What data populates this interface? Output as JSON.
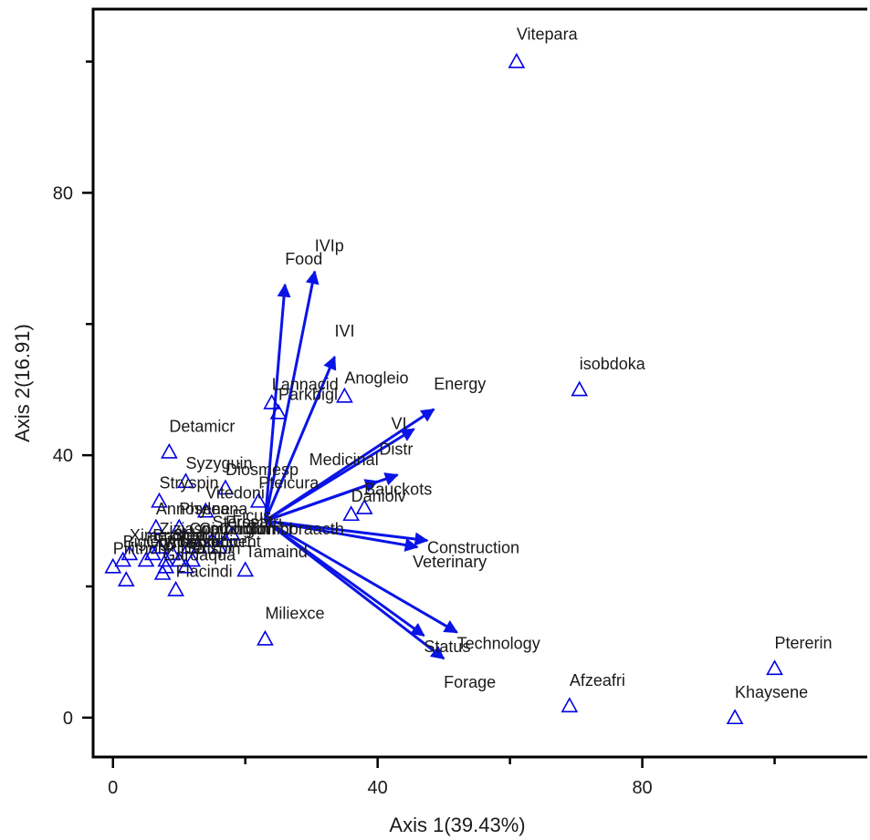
{
  "chart_data": {
    "type": "scatter",
    "title": "",
    "xlabel": "Axis 1(39.43%)",
    "ylabel": "Axis 2(16.91)",
    "xlim": [
      -3,
      114
    ],
    "ylim": [
      -6,
      108
    ],
    "x_ticks": [
      0,
      40,
      80
    ],
    "y_ticks": [
      0,
      40,
      80
    ],
    "x_tick_labels": [
      "0",
      "40",
      "80"
    ],
    "y_tick_labels": [
      "0",
      "40",
      "80"
    ],
    "grid": false,
    "marker": "triangle-open",
    "colors": {
      "marker": "#0000e6",
      "arrow": "#0a14e6",
      "axis": "#000000",
      "text": "#1a1a1a"
    },
    "arrow_origin": [
      23,
      30
    ],
    "species": [
      {
        "label": "Vitepara",
        "x": 61,
        "y": 100
      },
      {
        "label": "isobdoka",
        "x": 70.5,
        "y": 50
      },
      {
        "label": "Pthererin",
        "x": 100,
        "y": 7.5
      },
      {
        "label": "Khaysene",
        "x": 94,
        "y": 0
      },
      {
        "label": "Afzeafri",
        "x": 69,
        "y": 1.8
      },
      {
        "label": "Miliexce",
        "x": 23,
        "y": 12
      },
      {
        "label": "Detamicr",
        "x": 8.5,
        "y": 40.5
      },
      {
        "label": "Syzyguin",
        "x": 11,
        "y": 36
      },
      {
        "label": "Diosmesp",
        "x": 17,
        "y": 35
      },
      {
        "label": "Pterocura",
        "x": 22,
        "y": 33
      },
      {
        "label": "Strychspin",
        "x": 7,
        "y": 33
      },
      {
        "label": "Vitedoni",
        "x": 14,
        "y": 31.5
      },
      {
        "label": "Annosene",
        "x": 6.5,
        "y": 29
      },
      {
        "label": "Phyleana",
        "x": 10,
        "y": 29
      },
      {
        "label": "Ficus",
        "x": 18,
        "y": 28
      },
      {
        "label": "Flacindi",
        "x": 9.5,
        "y": 19.5
      },
      {
        "label": "Tamaind",
        "x": 20,
        "y": 22.5
      },
      {
        "label": "Lannacid",
        "x": 24,
        "y": 48
      },
      {
        "label": "Parkbigl",
        "x": 25,
        "y": 46.5
      },
      {
        "label": "Anogleio",
        "x": 35,
        "y": 49
      },
      {
        "label": "Daniolv",
        "x": 36,
        "y": 31
      },
      {
        "label": "Bauckots",
        "x": 38,
        "y": 32
      },
      {
        "label": "Combmicr",
        "x": 2,
        "y": 21
      },
      {
        "label": "Pilithon",
        "x": 0,
        "y": 23
      },
      {
        "label": "Ximeamer",
        "x": 1.5,
        "y": 24
      },
      {
        "label": "Strispin",
        "x": 2.5,
        "y": 25
      },
      {
        "label": "Balaegyp",
        "x": 6,
        "y": 25
      },
      {
        "label": "Bridferr",
        "x": 7,
        "y": 26
      },
      {
        "label": "Ziziaspi",
        "x": 8,
        "y": 24
      },
      {
        "label": "Sclebirr",
        "x": 9,
        "y": 25
      },
      {
        "label": "Gardaqua",
        "x": 7.5,
        "y": 22
      },
      {
        "label": "Piliretu",
        "x": 8,
        "y": 23
      },
      {
        "label": "Lannmicr",
        "x": 10,
        "y": 24
      },
      {
        "label": "Acaciseb",
        "x": 11,
        "y": 23
      },
      {
        "label": "Lanneacid",
        "x": 12,
        "y": 24
      },
      {
        "label": "Combnig",
        "x": 11.5,
        "y": 26
      },
      {
        "label": "Combglut",
        "x": 13,
        "y": 26
      },
      {
        "label": "Sterseti",
        "x": 15,
        "y": 27
      },
      {
        "label": "Prosafri",
        "x": 16,
        "y": 26
      },
      {
        "label": "Acacpent",
        "x": 17,
        "y": 27
      },
      {
        "label": "Combcoll",
        "x": 5,
        "y": 24
      }
    ],
    "variables": [
      {
        "label": "IVIp",
        "x": 30.5,
        "y": 68
      },
      {
        "label": "Food",
        "x": 26,
        "y": 66
      },
      {
        "label": "IVI",
        "x": 33.5,
        "y": 55
      },
      {
        "label": "Energy",
        "x": 48.5,
        "y": 47
      },
      {
        "label": "VI",
        "x": 45.5,
        "y": 44
      },
      {
        "label": "Distr",
        "x": 43,
        "y": 37
      },
      {
        "label": "Medicinal",
        "x": 40,
        "y": 36
      },
      {
        "label": "Construction",
        "x": 47.5,
        "y": 27
      },
      {
        "label": "Veterinary",
        "x": 46,
        "y": 26
      },
      {
        "label": "Technology",
        "x": 52,
        "y": 13
      },
      {
        "label": "Status",
        "x": 47,
        "y": 12.5
      },
      {
        "label": "Forage",
        "x": 50,
        "y": 9
      }
    ]
  },
  "visible_species_labels": [
    {
      "text": "Vitepara",
      "x": 61,
      "y": 100
    },
    {
      "text": "isobdoka",
      "x": 70.5,
      "y": 50
    },
    {
      "text": "Ptererin",
      "x": 100,
      "y": 7.5
    },
    {
      "text": "Khaysene",
      "x": 94,
      "y": 0
    },
    {
      "text": "Afzeafri",
      "x": 69,
      "y": 1.8
    },
    {
      "text": "Miliexce",
      "x": 23,
      "y": 12
    },
    {
      "text": "Detamicr",
      "x": 8.5,
      "y": 40.5
    },
    {
      "text": "Syzyguin",
      "x": 11,
      "y": 36
    },
    {
      "text": "Diosmesp",
      "x": 17,
      "y": 35
    },
    {
      "text": "Pteicura",
      "x": 22,
      "y": 33
    },
    {
      "text": "Stryspin",
      "x": 7,
      "y": 33
    },
    {
      "text": "Vitedoni",
      "x": 14,
      "y": 31.5
    },
    {
      "text": "Annosene",
      "x": 6.5,
      "y": 29
    },
    {
      "text": "Phyleana",
      "x": 10,
      "y": 29
    },
    {
      "text": "Ficus",
      "x": 18,
      "y": 28
    },
    {
      "text": "Flacindi",
      "x": 9.5,
      "y": 19.5
    },
    {
      "text": "Tamaind",
      "x": 20,
      "y": 22.5
    },
    {
      "text": "Lannacid",
      "x": 24,
      "y": 48
    },
    {
      "text": "Parkbigl",
      "x": 25,
      "y": 46.5
    },
    {
      "text": "Anogleio",
      "x": 35,
      "y": 49
    },
    {
      "text": "Daniolv",
      "x": 36,
      "y": 31
    },
    {
      "text": "Bauckots",
      "x": 38,
      "y": 32
    },
    {
      "text": "Pilithon",
      "x": 0,
      "y": 23
    },
    {
      "text": "Biglegyp",
      "x": 1.5,
      "y": 24
    },
    {
      "text": "Ximeamer",
      "x": 2.5,
      "y": 25
    },
    {
      "text": "Bridferr",
      "x": 6,
      "y": 25
    },
    {
      "text": "Acacpent",
      "x": 12,
      "y": 24
    },
    {
      "text": "Sclebirr",
      "x": 9,
      "y": 25
    },
    {
      "text": "Combmicr",
      "x": 16,
      "y": 26
    },
    {
      "text": "Combglut",
      "x": 13,
      "y": 26
    },
    {
      "text": "Lannmicr",
      "x": 10,
      "y": 24
    },
    {
      "text": "Combnig",
      "x": 11.5,
      "y": 26
    },
    {
      "text": "Ziziaspi",
      "x": 7,
      "y": 26
    },
    {
      "text": "Acacseb",
      "x": 8,
      "y": 24
    },
    {
      "text": "Gardaqua",
      "x": 7.5,
      "y": 22
    },
    {
      "text": "Piliretu",
      "x": 8,
      "y": 23
    },
    {
      "text": "Sterseti",
      "x": 15,
      "y": 27
    },
    {
      "text": "Prosafri",
      "x": 17,
      "y": 27
    },
    {
      "text": "Combbraacth",
      "x": 20,
      "y": 26
    },
    {
      "text": "Combcoll",
      "x": 5,
      "y": 24
    },
    {
      "text": "Strispin",
      "x": 11,
      "y": 23
    }
  ]
}
